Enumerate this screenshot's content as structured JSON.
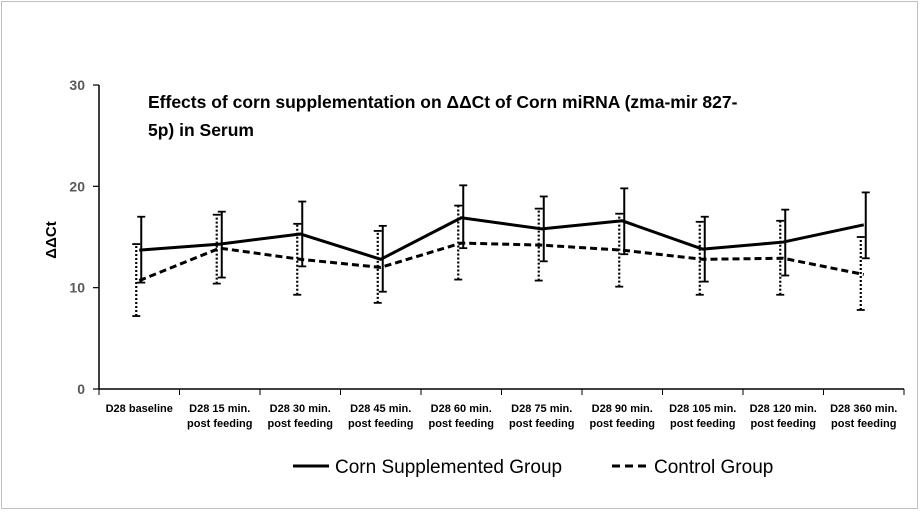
{
  "chart_data": {
    "type": "line",
    "title_lines": [
      "Effects of corn supplementation on ΔΔCt of Corn miRNA (zma-mir 827-",
      "5p)  in Serum"
    ],
    "ylabel": "ΔΔCt",
    "xlabel": "",
    "ylim": [
      0,
      30
    ],
    "yticks": [
      0,
      10,
      20,
      30
    ],
    "grid": false,
    "legend_position": "bottom",
    "categories": [
      [
        "D28 baseline"
      ],
      [
        "D28 15 min.",
        "post feeding"
      ],
      [
        "D28 30 min.",
        "post feeding"
      ],
      [
        "D28 45 min.",
        "post feeding"
      ],
      [
        "D28 60 min.",
        "post feeding"
      ],
      [
        "D28 75 min.",
        "post feeding"
      ],
      [
        "D28 90 min.",
        "post feeding"
      ],
      [
        "D28 105 min.",
        "post feeding"
      ],
      [
        "D28 120 min.",
        "post feeding"
      ],
      [
        "D28 360 min.",
        "post feeding"
      ]
    ],
    "series": [
      {
        "name": "Corn Supplemented Group",
        "style": "solid",
        "color": "#000000",
        "values": [
          13.7,
          14.3,
          15.3,
          12.8,
          16.9,
          15.8,
          16.6,
          13.8,
          14.5,
          16.2
        ],
        "err_low": [
          10.5,
          11.0,
          12.1,
          9.6,
          13.9,
          12.6,
          13.3,
          10.6,
          11.2,
          12.9
        ],
        "err_high": [
          17.0,
          17.5,
          18.5,
          16.1,
          20.1,
          19.0,
          19.8,
          17.0,
          17.7,
          19.4
        ]
      },
      {
        "name": "Control Group",
        "style": "dashed",
        "color": "#000000",
        "values": [
          10.7,
          13.9,
          12.8,
          12.0,
          14.4,
          14.2,
          13.7,
          12.8,
          12.9,
          11.3
        ],
        "err_low": [
          7.2,
          10.4,
          9.3,
          8.5,
          10.8,
          10.7,
          10.1,
          9.3,
          9.3,
          7.8
        ],
        "err_high": [
          14.3,
          17.2,
          16.3,
          15.6,
          18.1,
          17.8,
          17.3,
          16.5,
          16.6,
          15.0
        ]
      }
    ]
  }
}
